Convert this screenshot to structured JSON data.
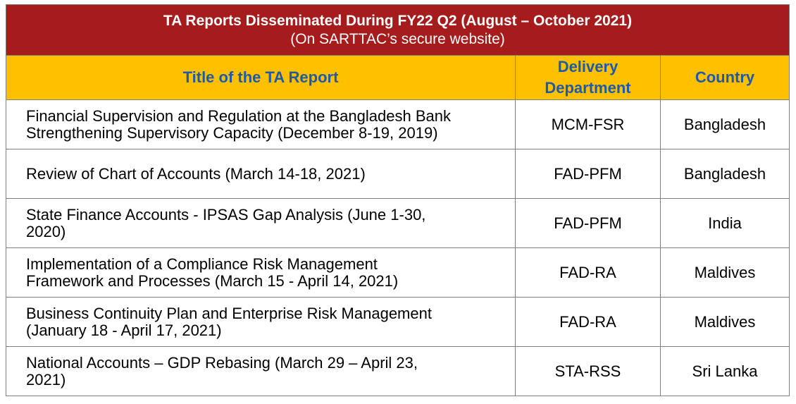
{
  "caption": {
    "title": "TA Reports Disseminated During FY22 Q2 (August – October 2021)",
    "subtitle": "(On SARTTAC’s secure website)"
  },
  "columns": {
    "title": "Title of the TA Report",
    "department_line1": "Delivery",
    "department_line2": "Department",
    "country": "Country"
  },
  "rows": [
    {
      "title_line1": "Financial Supervision and Regulation at the Bangladesh Bank",
      "title_line2": "Strengthening Supervisory Capacity (December 8-19, 2019)",
      "department": "MCM-FSR",
      "country": "Bangladesh"
    },
    {
      "title_line1": "Review of Chart of Accounts (March 14-18, 2021)",
      "title_line2": "",
      "department": "FAD-PFM",
      "country": "Bangladesh"
    },
    {
      "title_line1": "State Finance Accounts - IPSAS Gap Analysis (June 1-30,",
      "title_line2": "2020)",
      "department": "FAD-PFM",
      "country": "India"
    },
    {
      "title_line1": "Implementation of a Compliance Risk Management",
      "title_line2": "Framework and Processes (March 15 - April 14, 2021)",
      "department": "FAD-RA",
      "country": "Maldives"
    },
    {
      "title_line1": "Business Continuity Plan and Enterprise Risk Management",
      "title_line2": "(January 18 - April 17, 2021)",
      "department": "FAD-RA",
      "country": "Maldives"
    },
    {
      "title_line1": "National Accounts – GDP Rebasing (March 29 – April 23,",
      "title_line2": "2021)",
      "department": "STA-RSS",
      "country": "Sri Lanka"
    }
  ]
}
